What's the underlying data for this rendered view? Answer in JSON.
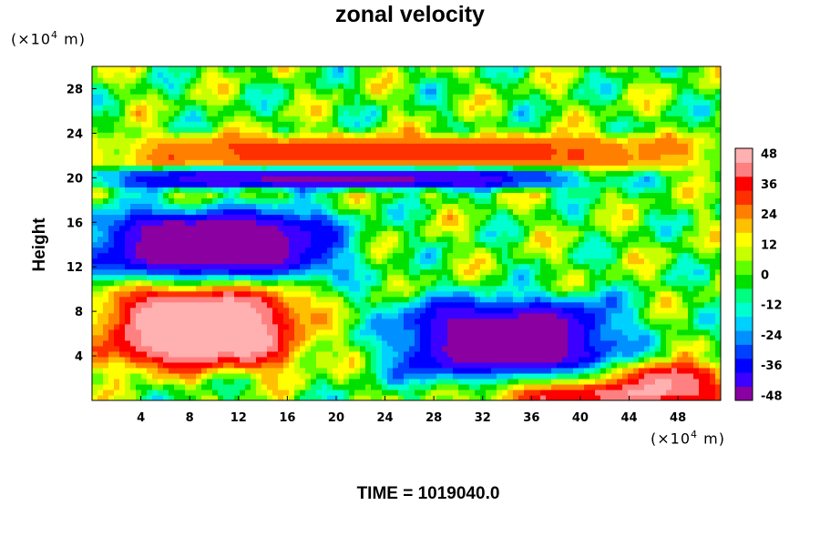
{
  "chart_data": {
    "type": "heatmap",
    "title": "zonal velocity",
    "ylabel": "Height",
    "y_unit_prefix": "(×10",
    "y_unit_exp": "4",
    "y_unit_suffix": " m)",
    "x_unit_prefix": "(×10",
    "x_unit_exp": "4",
    "x_unit_suffix": " m)",
    "footer": "TIME = 1019040.0",
    "xlim": [
      0,
      51.5
    ],
    "ylim": [
      0,
      30
    ],
    "xticks": [
      "4",
      "8",
      "12",
      "16",
      "20",
      "24",
      "28",
      "32",
      "36",
      "40",
      "44",
      "48"
    ],
    "yticks": [
      "4",
      "8",
      "12",
      "16",
      "20",
      "24",
      "28"
    ],
    "colorbar": {
      "range": [
        -50,
        50
      ],
      "ticks": [
        "48",
        "36",
        "24",
        "12",
        "0",
        "-12",
        "-24",
        "-36",
        "-48"
      ],
      "colors": [
        "#8a00a0",
        "#3b00ff",
        "#0000ff",
        "#0040ff",
        "#0090ff",
        "#00d0ff",
        "#00ffd0",
        "#00ff80",
        "#00e000",
        "#60ff00",
        "#c8ff00",
        "#ffff00",
        "#ffc000",
        "#ff8000",
        "#ff3000",
        "#ff0000",
        "#ff8080",
        "#ffb0b0"
      ]
    },
    "field_features": [
      {
        "label": "strong easterly region, mid-left",
        "x_range": [
          0,
          20
        ],
        "y_range": [
          11,
          17
        ],
        "value": -50
      },
      {
        "label": "strong westerly region, lower-left",
        "x_range": [
          1,
          17
        ],
        "y_range": [
          3,
          10
        ],
        "value": 50
      },
      {
        "label": "strong westerly band near top",
        "x_range": [
          0,
          51.5
        ],
        "y_range": [
          21,
          23.5
        ],
        "value": 30
      },
      {
        "label": "strong easterly band",
        "x_range": [
          0,
          40
        ],
        "y_range": [
          19.5,
          20.5
        ],
        "value": -45
      },
      {
        "label": "westerly region near bottom right",
        "x_range": [
          33,
          51.5
        ],
        "y_range": [
          0,
          3
        ],
        "value": 50
      },
      {
        "label": "easterly region center-right",
        "x_range": [
          25,
          43
        ],
        "y_range": [
          2,
          9
        ],
        "value": -48
      }
    ]
  }
}
